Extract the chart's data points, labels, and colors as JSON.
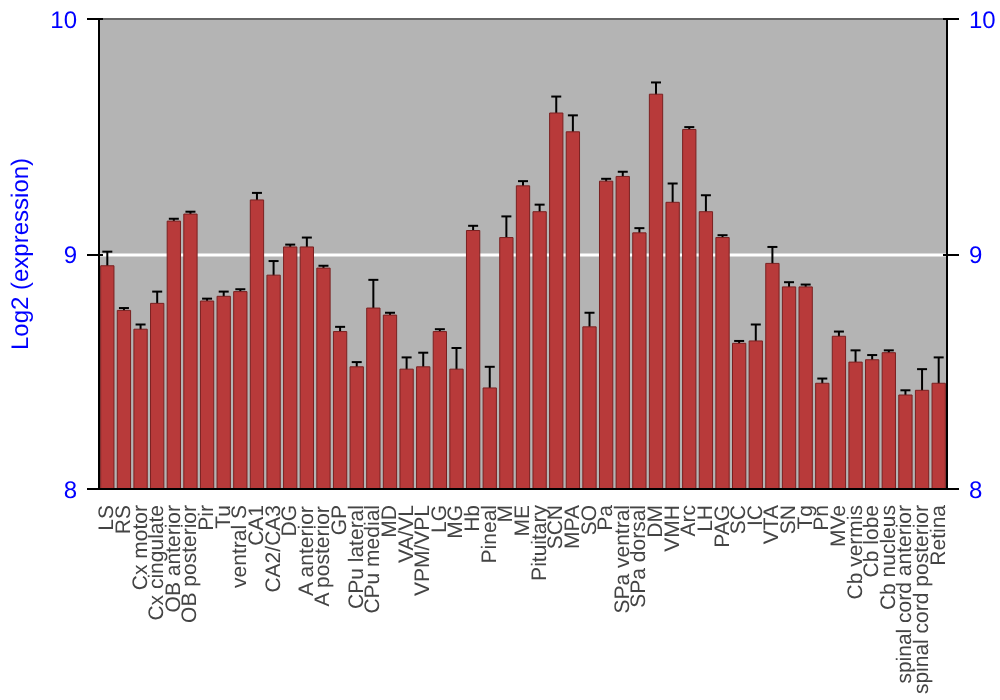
{
  "chart_data": {
    "type": "bar",
    "ylabel": "Log2 (expression)",
    "categories": [
      "LS",
      "RS",
      "Cx motor",
      "Cx cingulate",
      "OB anterior",
      "OB posterior",
      "Pir",
      "Tu",
      "ventral S",
      "CA1",
      "CA2/CA3",
      "DG",
      "A anterior",
      "A posterior",
      "GP",
      "CPu lateral",
      "CPu medial",
      "MD",
      "VA/VL",
      "VPM/VPL",
      "LG",
      "MG",
      "Hb",
      "Pineal",
      "M",
      "ME",
      "Pituitary",
      "SCN",
      "MPA",
      "SO",
      "Pa",
      "SPa ventral",
      "SPa dorsal",
      "DM",
      "VMH",
      "Arc",
      "LH",
      "PAG",
      "SC",
      "IC",
      "VTA",
      "SN",
      "Tg",
      "Pn",
      "MVe",
      "Cb vermis",
      "Cb lobe",
      "Cb nucleus",
      "spinal cord anterior",
      "spinal cord posterior",
      "Retina"
    ],
    "values": [
      8.95,
      8.76,
      8.68,
      8.79,
      9.14,
      9.17,
      8.8,
      8.82,
      8.84,
      9.23,
      8.91,
      9.03,
      9.03,
      8.94,
      8.67,
      8.52,
      8.77,
      8.74,
      8.51,
      8.52,
      8.67,
      8.51,
      9.1,
      8.43,
      9.07,
      9.29,
      9.18,
      9.6,
      9.52,
      8.69,
      9.31,
      9.33,
      9.09,
      9.68,
      9.22,
      9.53,
      9.18,
      9.07,
      8.62,
      8.63,
      8.96,
      8.86,
      8.86,
      8.45,
      8.65,
      8.54,
      8.55,
      8.58,
      8.4,
      8.42,
      8.45
    ],
    "errors": [
      0.06,
      0.01,
      0.02,
      0.05,
      0.01,
      0.01,
      0.01,
      0.02,
      0.01,
      0.03,
      0.06,
      0.01,
      0.04,
      0.01,
      0.02,
      0.02,
      0.12,
      0.01,
      0.05,
      0.06,
      0.01,
      0.09,
      0.02,
      0.09,
      0.09,
      0.02,
      0.03,
      0.07,
      0.07,
      0.06,
      0.01,
      0.02,
      0.02,
      0.05,
      0.08,
      0.01,
      0.07,
      0.01,
      0.01,
      0.07,
      0.07,
      0.02,
      0.01,
      0.02,
      0.02,
      0.05,
      0.02,
      0.01,
      0.02,
      0.09,
      0.11
    ],
    "color": "#b83a3a",
    "ylim": [
      8,
      10
    ],
    "yticks": [
      8,
      9,
      10
    ],
    "y2lim": [
      8,
      10
    ],
    "y2ticks": [
      8,
      9,
      10
    ],
    "grid": "y"
  }
}
